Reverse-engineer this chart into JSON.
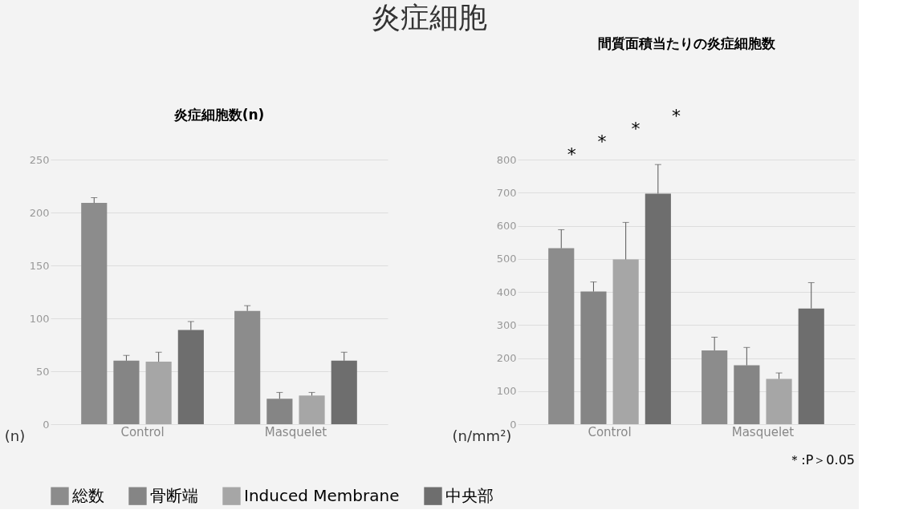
{
  "chart_data": [
    {
      "type": "other",
      "title": "炎症細胞"
    },
    {
      "type": "bar",
      "title": "炎症細胞数(n)",
      "ylabel": "(n)",
      "categories": [
        "Control",
        "Masquelet"
      ],
      "series": [
        {
          "name": "総数",
          "color": "#8c8c8c",
          "values": [
            209,
            107
          ],
          "errors": [
            5,
            5
          ]
        },
        {
          "name": "骨断端",
          "color": "#858585",
          "values": [
            60,
            24
          ],
          "errors": [
            5,
            6
          ]
        },
        {
          "name": "Induced Membrane",
          "color": "#a6a6a6",
          "values": [
            59,
            27
          ],
          "errors": [
            9,
            3
          ]
        },
        {
          "name": "中央部",
          "color": "#6e6e6e",
          "values": [
            89,
            60
          ],
          "errors": [
            8,
            8
          ]
        }
      ],
      "ylim": [
        0,
        250
      ],
      "yticks": [
        0,
        50,
        100,
        150,
        200,
        250
      ],
      "grid": "y",
      "legend": "bottom"
    },
    {
      "type": "bar",
      "title": "間質面積当たりの炎症細胞数",
      "ylabel": "(n/mm²)",
      "categories": [
        "Control",
        "Masquelet"
      ],
      "series": [
        {
          "name": "総数",
          "color": "#8c8c8c",
          "values": [
            532,
            223
          ],
          "errors": [
            56,
            40
          ]
        },
        {
          "name": "骨断端",
          "color": "#858585",
          "values": [
            401,
            178
          ],
          "errors": [
            29,
            54
          ]
        },
        {
          "name": "Induced Membrane",
          "color": "#a6a6a6",
          "values": [
            498,
            137
          ],
          "errors": [
            112,
            18
          ]
        },
        {
          "name": "中央部",
          "color": "#6e6e6e",
          "values": [
            697,
            350
          ],
          "errors": [
            88,
            78
          ]
        }
      ],
      "ylim": [
        0,
        800
      ],
      "yticks": [
        0,
        100,
        200,
        300,
        400,
        500,
        600,
        700,
        800
      ],
      "grid": "y",
      "legend": "bottom",
      "annotations": [
        "*",
        "*",
        "*",
        "*",
        "＊:P＞0.05"
      ]
    }
  ]
}
